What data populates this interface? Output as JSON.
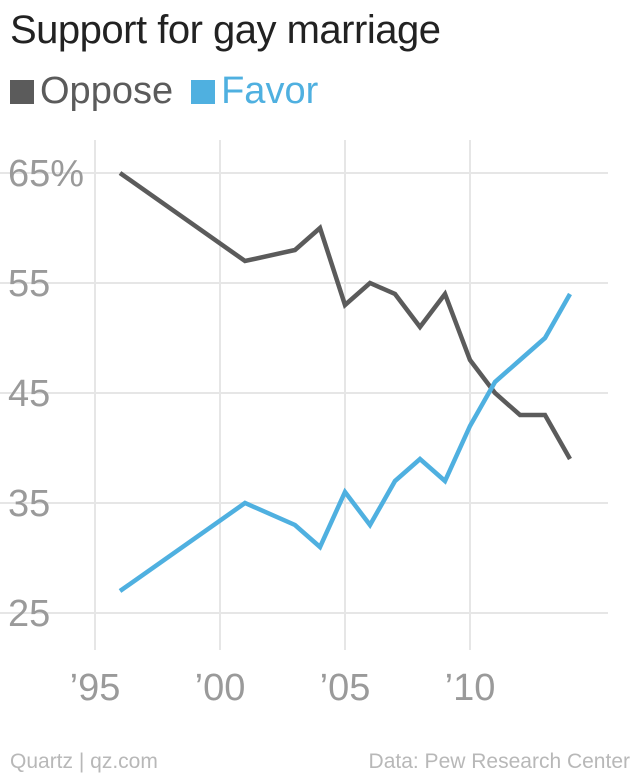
{
  "title": "Support for gay marriage",
  "footer": {
    "source_left": "Quartz | qz.com",
    "source_right": "Data: Pew Research Center"
  },
  "colors": {
    "oppose": "#5b5b5b",
    "favor": "#4fb0e0",
    "grid": "#e6e6e6",
    "tick": "#9a9a9a"
  },
  "chart_data": {
    "type": "line",
    "title": "Support for gay marriage",
    "xlabel": "",
    "ylabel": "",
    "xlim": [
      1995,
      2014
    ],
    "ylim": [
      25,
      65
    ],
    "grid": true,
    "legend_placement": "top-left",
    "y_ticks": [
      {
        "value": 65,
        "label": "65%"
      },
      {
        "value": 55,
        "label": "55"
      },
      {
        "value": 45,
        "label": "45"
      },
      {
        "value": 35,
        "label": "35"
      },
      {
        "value": 25,
        "label": "25"
      }
    ],
    "x_ticks": [
      {
        "value": 1995,
        "label": "’95"
      },
      {
        "value": 2000,
        "label": "’00"
      },
      {
        "value": 2005,
        "label": "’05"
      },
      {
        "value": 2010,
        "label": "’10"
      }
    ],
    "series": [
      {
        "name": "Oppose",
        "color": "#5b5b5b",
        "points": [
          {
            "x": 1996,
            "y": 65
          },
          {
            "x": 2001,
            "y": 57
          },
          {
            "x": 2003,
            "y": 58
          },
          {
            "x": 2004,
            "y": 60
          },
          {
            "x": 2005,
            "y": 53
          },
          {
            "x": 2006,
            "y": 55
          },
          {
            "x": 2007,
            "y": 54
          },
          {
            "x": 2008,
            "y": 51
          },
          {
            "x": 2009,
            "y": 54
          },
          {
            "x": 2010,
            "y": 48
          },
          {
            "x": 2011,
            "y": 45
          },
          {
            "x": 2012,
            "y": 43
          },
          {
            "x": 2013,
            "y": 43
          },
          {
            "x": 2014,
            "y": 39
          }
        ]
      },
      {
        "name": "Favor",
        "color": "#4fb0e0",
        "points": [
          {
            "x": 1996,
            "y": 27
          },
          {
            "x": 2001,
            "y": 35
          },
          {
            "x": 2003,
            "y": 33
          },
          {
            "x": 2004,
            "y": 31
          },
          {
            "x": 2005,
            "y": 36
          },
          {
            "x": 2006,
            "y": 33
          },
          {
            "x": 2007,
            "y": 37
          },
          {
            "x": 2008,
            "y": 39
          },
          {
            "x": 2009,
            "y": 37
          },
          {
            "x": 2010,
            "y": 42
          },
          {
            "x": 2011,
            "y": 46
          },
          {
            "x": 2012,
            "y": 48
          },
          {
            "x": 2013,
            "y": 50
          },
          {
            "x": 2014,
            "y": 54
          }
        ]
      }
    ]
  }
}
